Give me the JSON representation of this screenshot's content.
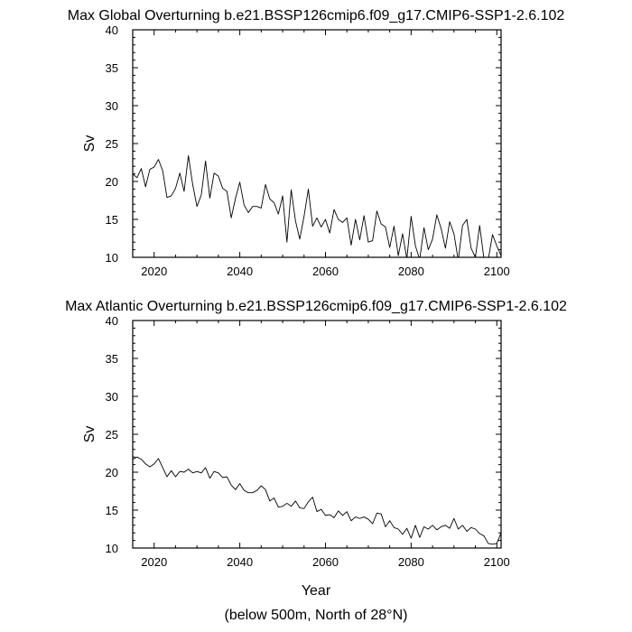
{
  "chart_data": [
    {
      "type": "line",
      "title": "Max Global Overturning b.e21.BSSP126cmip6.f09_g17.CMIP6-SSP1-2.6.102",
      "xlabel": "",
      "ylabel": "Sv",
      "xlim": [
        2015,
        2101
      ],
      "ylim": [
        10,
        40
      ],
      "xticks": [
        2020,
        2040,
        2060,
        2080,
        2100
      ],
      "yticks": [
        10,
        15,
        20,
        25,
        30,
        35,
        40
      ],
      "series": [
        {
          "name": "Max Global Overturning",
          "x": [
            2015,
            2016,
            2017,
            2018,
            2019,
            2020,
            2021,
            2022,
            2023,
            2024,
            2025,
            2026,
            2027,
            2028,
            2029,
            2030,
            2031,
            2032,
            2033,
            2034,
            2035,
            2036,
            2037,
            2038,
            2039,
            2040,
            2041,
            2042,
            2043,
            2044,
            2045,
            2046,
            2047,
            2048,
            2049,
            2050,
            2051,
            2052,
            2053,
            2054,
            2055,
            2056,
            2057,
            2058,
            2059,
            2060,
            2061,
            2062,
            2063,
            2064,
            2065,
            2066,
            2067,
            2068,
            2069,
            2070,
            2071,
            2072,
            2073,
            2074,
            2075,
            2076,
            2077,
            2078,
            2079,
            2080,
            2081,
            2082,
            2083,
            2084,
            2085,
            2086,
            2087,
            2088,
            2089,
            2090,
            2091,
            2092,
            2093,
            2094,
            2095,
            2096,
            2097,
            2098,
            2099,
            2100,
            2101
          ],
          "values": [
            21.0,
            20.5,
            21.7,
            19.3,
            21.6,
            21.9,
            22.9,
            21.4,
            17.9,
            18.1,
            19.1,
            21.1,
            18.7,
            23.4,
            19.6,
            16.7,
            18.2,
            22.7,
            17.8,
            21.1,
            20.7,
            19.1,
            18.7,
            15.2,
            17.8,
            19.9,
            16.9,
            15.9,
            16.7,
            16.7,
            16.5,
            19.6,
            17.7,
            17.2,
            15.7,
            18.1,
            12.0,
            18.9,
            14.8,
            12.4,
            15.4,
            19.0,
            14.1,
            15.2,
            14.0,
            15.0,
            13.2,
            16.3,
            15.0,
            14.6,
            15.2,
            11.6,
            15.0,
            12.3,
            15.5,
            12.0,
            12.2,
            16.1,
            14.4,
            14.0,
            11.3,
            14.1,
            10.2,
            13.1,
            9.8,
            15.4,
            11.5,
            9.7,
            13.9,
            11.0,
            12.4,
            15.6,
            13.8,
            11.2,
            14.7,
            13.1,
            9.6,
            14.2,
            15.0,
            11.2,
            10.0,
            14.2,
            9.8,
            9.7,
            13.0,
            11.5,
            10.2
          ]
        }
      ]
    },
    {
      "type": "line",
      "title": "Max Atlantic Overturning b.e21.BSSP126cmip6.f09_g17.CMIP6-SSP1-2.6.102",
      "xlabel": "Year",
      "ylabel": "Sv",
      "xlim": [
        2015,
        2101
      ],
      "ylim": [
        10,
        40
      ],
      "xticks": [
        2020,
        2040,
        2060,
        2080,
        2100
      ],
      "yticks": [
        10,
        15,
        20,
        25,
        30,
        35,
        40
      ],
      "series": [
        {
          "name": "Max Atlantic Overturning",
          "x": [
            2015,
            2016,
            2017,
            2018,
            2019,
            2020,
            2021,
            2022,
            2023,
            2024,
            2025,
            2026,
            2027,
            2028,
            2029,
            2030,
            2031,
            2032,
            2033,
            2034,
            2035,
            2036,
            2037,
            2038,
            2039,
            2040,
            2041,
            2042,
            2043,
            2044,
            2045,
            2046,
            2047,
            2048,
            2049,
            2050,
            2051,
            2052,
            2053,
            2054,
            2055,
            2056,
            2057,
            2058,
            2059,
            2060,
            2061,
            2062,
            2063,
            2064,
            2065,
            2066,
            2067,
            2068,
            2069,
            2070,
            2071,
            2072,
            2073,
            2074,
            2075,
            2076,
            2077,
            2078,
            2079,
            2080,
            2081,
            2082,
            2083,
            2084,
            2085,
            2086,
            2087,
            2088,
            2089,
            2090,
            2091,
            2092,
            2093,
            2094,
            2095,
            2096,
            2097,
            2098,
            2099,
            2100,
            2101
          ],
          "values": [
            21.7,
            22.0,
            21.7,
            21.1,
            20.7,
            21.1,
            21.8,
            20.6,
            19.4,
            20.2,
            19.4,
            20.1,
            20.0,
            20.4,
            19.9,
            20.1,
            19.9,
            20.6,
            19.2,
            20.1,
            19.9,
            19.3,
            19.4,
            18.3,
            17.7,
            18.5,
            17.6,
            17.3,
            17.3,
            17.6,
            18.2,
            17.7,
            16.2,
            16.6,
            15.4,
            15.5,
            15.9,
            15.5,
            16.2,
            15.3,
            15.2,
            16.1,
            16.7,
            14.8,
            15.1,
            14.3,
            14.4,
            14.0,
            14.9,
            14.3,
            14.8,
            13.6,
            14.1,
            13.9,
            14.1,
            13.8,
            13.2,
            14.6,
            14.5,
            12.8,
            13.6,
            12.7,
            12.5,
            11.8,
            12.6,
            11.3,
            13.0,
            11.4,
            12.8,
            12.5,
            13.0,
            12.4,
            12.8,
            13.0,
            12.6,
            13.9,
            12.5,
            13.0,
            12.2,
            12.7,
            12.5,
            11.9,
            11.6,
            10.6,
            10.5,
            10.6,
            12.0
          ]
        }
      ]
    }
  ],
  "footnote": "(below 500m, North of 28°N)"
}
